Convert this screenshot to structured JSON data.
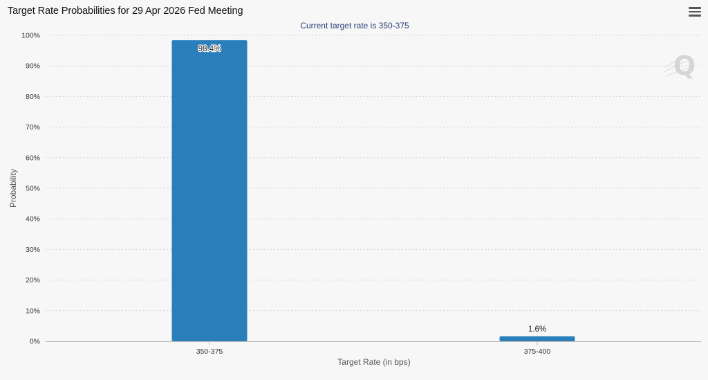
{
  "window": {
    "title": "Target Rate Probabilities for 29 Apr 2026 Fed Meeting"
  },
  "toolbar": {
    "menu_icon": "hamburger-menu-icon"
  },
  "watermark": {
    "icon": "q-logo-watermark-icon",
    "text": "Q"
  },
  "colors": {
    "bar": "#2a7fbb",
    "grid": "#d4d4d4",
    "subtitle": "#2a3f7a"
  },
  "chart_data": {
    "type": "bar",
    "title": "Target Rate Probabilities for 29 Apr 2026 Fed Meeting",
    "subtitle": "Current target rate is 350-375",
    "categories": [
      "350-375",
      "375-400"
    ],
    "values": [
      98.4,
      1.6
    ],
    "data_labels": [
      "98.4%",
      "1.6%"
    ],
    "xlabel": "Target Rate (in bps)",
    "ylabel": "Probability",
    "ylim": [
      0,
      100
    ],
    "yticks": [
      "0%",
      "10%",
      "20%",
      "30%",
      "40%",
      "50%",
      "60%",
      "70%",
      "80%",
      "90%",
      "100%"
    ],
    "grid": true,
    "legend": "none"
  }
}
